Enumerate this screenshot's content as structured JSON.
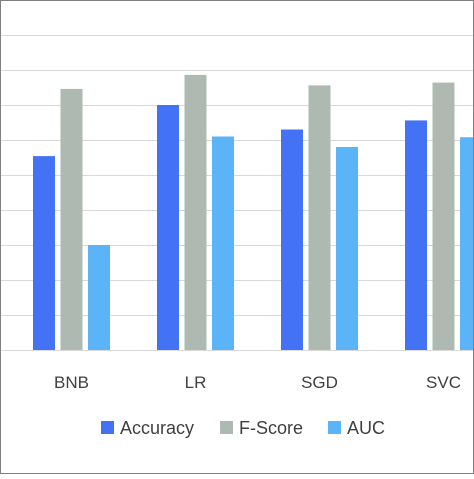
{
  "chart_data": {
    "type": "bar",
    "title": "",
    "xlabel": "",
    "ylabel": "",
    "categories": [
      "BNB",
      "LR",
      "SGD",
      "SVC"
    ],
    "series": [
      {
        "name": "Accuracy",
        "values": [
          0.777,
          0.85,
          0.815,
          0.828
        ],
        "color": "#4472F4"
      },
      {
        "name": "F-Score",
        "values": [
          0.873,
          0.893,
          0.878,
          0.882
        ],
        "color": "#AEB9B2"
      },
      {
        "name": "AUC",
        "values": [
          0.65,
          0.805,
          0.79,
          0.804
        ],
        "color": "#5AB4F7"
      }
    ],
    "ylim": [
      0.5,
      1.0
    ],
    "y_gridlines": [
      0.55,
      0.6,
      0.65,
      0.7,
      0.75,
      0.8,
      0.85,
      0.9,
      0.95,
      1.0
    ],
    "grid": true,
    "legend_position": "bottom",
    "colors": {
      "grid": "#d9d9d9",
      "frame": "#7f7f7f",
      "text": "#404040"
    }
  }
}
